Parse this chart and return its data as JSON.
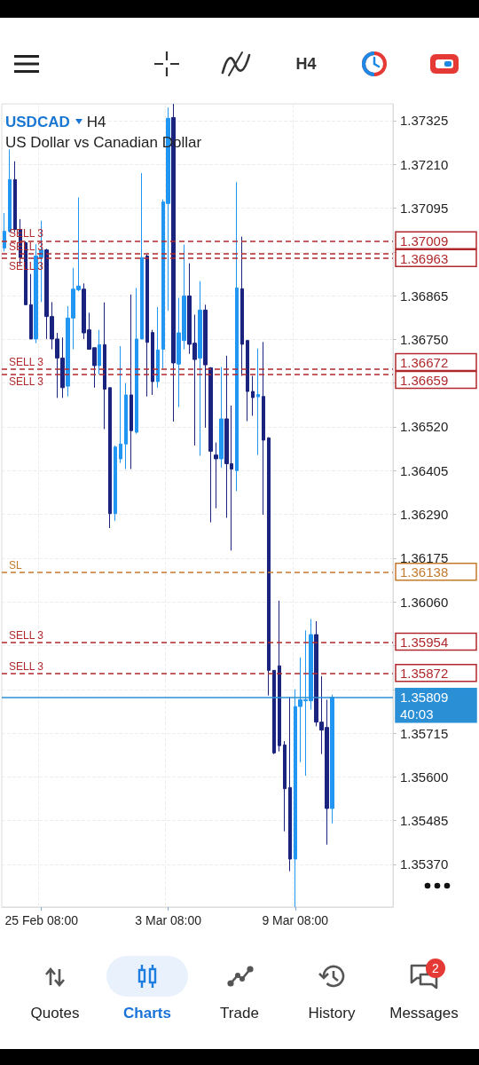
{
  "chart_data": {
    "type": "candlestick",
    "title": "USDCAD H4",
    "subtitle": "US Dollar vs Canadian Dollar",
    "categories": [
      null,
      null,
      null,
      null,
      null,
      null,
      null,
      "25 Feb 08:00",
      null,
      null,
      null,
      null,
      null,
      null,
      null,
      null,
      null,
      null,
      null,
      null,
      null,
      null,
      null,
      null,
      null,
      null,
      null,
      null,
      null,
      null,
      null,
      "3 Mar 08:00",
      null,
      null,
      null,
      null,
      null,
      null,
      null,
      null,
      null,
      null,
      null,
      null,
      null,
      null,
      null,
      null,
      null,
      null,
      null,
      null,
      null,
      null,
      null,
      "9 Mar 08:00",
      null,
      null,
      null,
      null,
      null,
      null,
      null
    ],
    "ohlc": [
      [
        1.3699,
        1.37082,
        1.36981,
        1.37034
      ],
      [
        1.37034,
        1.37249,
        1.37031,
        1.3717
      ],
      [
        1.3717,
        1.37218,
        1.37031,
        1.37039
      ],
      [
        1.37039,
        1.37066,
        1.36946,
        1.36965
      ],
      [
        1.37004,
        1.37008,
        1.36841,
        1.36841
      ],
      [
        1.36841,
        1.36922,
        1.36751,
        1.36751
      ],
      [
        1.36751,
        1.37,
        1.3674,
        1.36969
      ],
      [
        1.36965,
        1.37062,
        1.36848,
        1.36985
      ],
      [
        1.36985,
        1.36988,
        1.36751,
        1.3681
      ],
      [
        1.3681,
        1.36848,
        1.36724,
        1.36751
      ],
      [
        1.36751,
        1.36767,
        1.36596,
        1.36701
      ],
      [
        1.36701,
        1.36755,
        1.36596,
        1.36623
      ],
      [
        1.36627,
        1.36837,
        1.366,
        1.36806
      ],
      [
        1.36806,
        1.36938,
        1.36724,
        1.36882
      ],
      [
        1.3688,
        1.37123,
        1.36876,
        1.3689
      ],
      [
        1.36882,
        1.36897,
        1.36751,
        1.36767
      ],
      [
        1.36775,
        1.3682,
        1.36724,
        1.36724
      ],
      [
        1.36728,
        1.36728,
        1.36623,
        1.36681
      ],
      [
        1.36681,
        1.36775,
        1.36658,
        1.36736
      ],
      [
        1.36736,
        1.36847,
        1.36514,
        1.36619
      ],
      [
        1.36623,
        1.36623,
        1.36254,
        1.36292
      ],
      [
        1.36292,
        1.36471,
        1.36273,
        1.36467
      ],
      [
        1.36436,
        1.36732,
        1.36425,
        1.36475
      ],
      [
        1.36475,
        1.36635,
        1.36409,
        1.36604
      ],
      [
        1.36604,
        1.36868,
        1.36409,
        1.3651
      ],
      [
        1.36506,
        1.36885,
        1.36502,
        1.36751
      ],
      [
        1.36751,
        1.37187,
        1.36751,
        1.36965
      ],
      [
        1.36969,
        1.36973,
        1.366,
        1.36742
      ],
      [
        1.36768,
        1.36775,
        1.36604,
        1.36639
      ],
      [
        1.36639,
        1.36835,
        1.36623,
        1.36722
      ],
      [
        1.36724,
        1.37118,
        1.36674,
        1.37111
      ],
      [
        1.37107,
        1.37359,
        1.36825,
        1.37331
      ],
      [
        1.37333,
        1.37369,
        1.36534,
        1.36688
      ],
      [
        1.36685,
        1.36859,
        1.36572,
        1.36767
      ],
      [
        1.36747,
        1.36999,
        1.36724,
        1.36864
      ],
      [
        1.36864,
        1.3695,
        1.36712,
        1.36737
      ],
      [
        1.3674,
        1.36815,
        1.36471,
        1.36697
      ],
      [
        1.36701,
        1.36903,
        1.36444,
        1.36827
      ],
      [
        1.36827,
        1.36841,
        1.36518,
        1.36683
      ],
      [
        1.36675,
        1.36677,
        1.36269,
        1.36456
      ],
      [
        1.36446,
        1.36479,
        1.36306,
        1.36436
      ],
      [
        1.36436,
        1.36677,
        1.36413,
        1.36541
      ],
      [
        1.36541,
        1.36707,
        1.36281,
        1.36423
      ],
      [
        1.36423,
        1.36576,
        1.36195,
        1.36409
      ],
      [
        1.36405,
        1.37163,
        1.36351,
        1.36885
      ],
      [
        1.36883,
        1.3702,
        1.36654,
        1.36737
      ],
      [
        1.36747,
        1.36747,
        1.36535,
        1.36613
      ],
      [
        1.36613,
        1.36654,
        1.36549,
        1.36597
      ],
      [
        1.36599,
        1.36726,
        1.36446,
        1.36605
      ],
      [
        1.366,
        1.36743,
        1.36289,
        1.36485
      ],
      [
        1.36491,
        1.36493,
        1.35814,
        1.3588
      ],
      [
        1.3588,
        1.3588,
        1.3566,
        1.35663
      ],
      [
        1.35892,
        1.36063,
        1.35667,
        1.35682
      ],
      [
        1.35684,
        1.35694,
        1.35457,
        1.35569
      ],
      [
        1.35572,
        1.3581,
        1.35352,
        1.35384
      ],
      [
        1.35384,
        1.3583,
        1.35258,
        1.35785
      ],
      [
        1.35785,
        1.35914,
        1.35639,
        1.35803
      ],
      [
        1.358,
        1.35985,
        1.35603,
        1.35803
      ],
      [
        1.358,
        1.36015,
        1.35777,
        1.35974
      ],
      [
        1.35974,
        1.36009,
        1.35733,
        1.35744
      ],
      [
        1.35744,
        1.35865,
        1.3566,
        1.35723
      ],
      [
        1.3573,
        1.35803,
        1.35422,
        1.35517
      ],
      [
        1.35517,
        1.35816,
        1.35478,
        1.35809
      ]
    ],
    "colors": [
      "#2196f3",
      "#2196f3",
      "#1a237e",
      "#1a237e",
      "#1a237e",
      "#1a237e",
      "#2196f3",
      "#2196f3",
      "#1a237e",
      "#1a237e",
      "#1a237e",
      "#1a237e",
      "#2196f3",
      "#2196f3",
      "#2196f3",
      "#1a237e",
      "#1a237e",
      "#1a237e",
      "#2196f3",
      "#1a237e",
      "#1a237e",
      "#2196f3",
      "#2196f3",
      "#2196f3",
      "#1a237e",
      "#2196f3",
      "#2196f3",
      "#1a237e",
      "#1a237e",
      "#2196f3",
      "#2196f3",
      "#2196f3",
      "#1a237e",
      "#2196f3",
      "#2196f3",
      "#1a237e",
      "#1a237e",
      "#2196f3",
      "#1a237e",
      "#1a237e",
      "#1a237e",
      "#2196f3",
      "#1a237e",
      "#1a237e",
      "#2196f3",
      "#1a237e",
      "#1a237e",
      "#1a237e",
      "#2196f3",
      "#1a237e",
      "#1a237e",
      "#1a237e",
      "#1a237e",
      "#1a237e",
      "#1a237e",
      "#2196f3",
      "#2196f3",
      "#2196f3",
      "#2196f3",
      "#1a237e",
      "#1a237e",
      "#1a237e",
      "#2196f3"
    ],
    "ylim": [
      1.35258,
      1.37369
    ],
    "yticks": [
      1.37325,
      {
        "value": 1.3721,
        "label": "1.37210"
      },
      1.37095,
      {
        "value": 1.3698,
        "label": null
      },
      1.36865,
      {
        "value": 1.3675,
        "label": "1.36750"
      },
      {
        "value": 1.36635,
        "label": null
      },
      {
        "value": 1.3652,
        "label": "1.36520"
      },
      1.36405,
      {
        "value": 1.3629,
        "label": "1.36290"
      },
      1.36175,
      {
        "value": 1.3606,
        "label": "1.36060"
      },
      {
        "value": 1.35945,
        "label": null
      },
      {
        "value": 1.3583,
        "label": null
      },
      1.35715,
      {
        "value": 1.356,
        "label": "1.35600"
      },
      1.35485,
      {
        "value": 1.3537,
        "label": "1.35370"
      }
    ],
    "grid": true,
    "ref_lines": [
      {
        "axis": "y",
        "value": 1.37009,
        "label": "SELL 3",
        "color": "#b0282c",
        "line_style": "dashed"
      },
      {
        "axis": "y",
        "value": 1.36963,
        "label": "SELL 3",
        "color": "#b0282c",
        "line_style": "dashed"
      },
      {
        "axis": "y",
        "value": 1.36672,
        "label": "SELL 3",
        "color": "#b0282c",
        "line_style": "dashed"
      },
      {
        "axis": "y",
        "value": 1.36659,
        "label": "SELL 3",
        "color": "#b0282c",
        "line_style": "dashed"
      },
      {
        "axis": "y",
        "value": 1.36138,
        "label": "SL",
        "color": "#c47a2c",
        "line_style": "dashed"
      },
      {
        "axis": "y",
        "value": 1.35954,
        "label": "SELL 3",
        "color": "#b0282c",
        "line_style": "dashed"
      },
      {
        "axis": "y",
        "value": 1.35872,
        "label": "SELL 3",
        "color": "#b0282c",
        "line_style": "dashed"
      },
      {
        "axis": "y",
        "value": 1.35809,
        "color": "#2b8fd6",
        "line_style": "solid"
      },
      {
        "axis": "y",
        "value": 1.36975,
        "label": "SELL 3",
        "color": "#b0282c",
        "line_style": "dashed"
      }
    ],
    "annotations": [
      "H4",
      "Quotes",
      "Charts",
      "Trade",
      "History",
      "Messages",
      "2",
      "40:03",
      "1.37009",
      "1.36963",
      "1.36672",
      "1.36659",
      "1.36138",
      "1.35954",
      "1.35872",
      "1.35809"
    ]
  }
}
